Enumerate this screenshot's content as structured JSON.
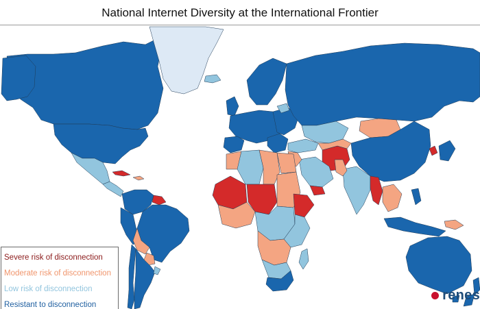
{
  "title": "National Internet Diversity at the International Frontier",
  "legend": {
    "items": [
      {
        "label": "Severe risk of disconnection",
        "color": "#8b1a1a",
        "swatch": "#d42a2a"
      },
      {
        "label": "Moderate risk of disconnection",
        "color": "#f0956c",
        "swatch": "#f4a582"
      },
      {
        "label": "Low risk of disconnection",
        "color": "#92c5de",
        "swatch": "#92c5de"
      },
      {
        "label": "Resistant to disconnection",
        "color": "#1f5fa0",
        "swatch": "#1a66ad"
      }
    ]
  },
  "map_colors": {
    "severe": "#d42a2a",
    "moderate": "#f4a582",
    "low": "#92c5de",
    "resistant": "#1a66ad",
    "no_data": "#dde9f5"
  },
  "logo": {
    "text": "renes"
  }
}
